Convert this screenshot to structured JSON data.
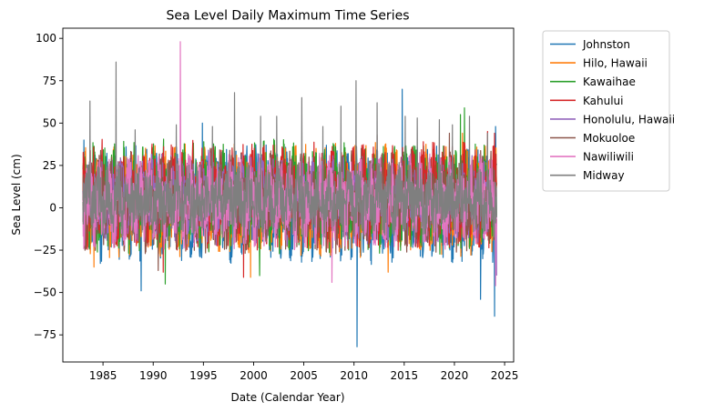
{
  "chart_data": {
    "type": "line",
    "title": "Sea Level Daily Maximum Time Series",
    "xlabel": "Date (Calendar Year)",
    "ylabel": "Sea Level (cm)",
    "xlim": [
      1981.0,
      2025.9
    ],
    "ylim": [
      -91,
      106
    ],
    "x_ticks": [
      1985,
      1990,
      1995,
      2000,
      2005,
      2010,
      2015,
      2020,
      2025
    ],
    "y_ticks": [
      -75,
      -50,
      -25,
      0,
      25,
      50,
      75,
      100
    ],
    "grid": false,
    "legend_position": "outside-top-right",
    "data_range": [
      1983.0,
      2024.2
    ],
    "series": [
      {
        "name": "Johnston",
        "color": "#1f77b4",
        "typical_range": [
          -28,
          32
        ],
        "extremes": [
          [
            1983.1,
            40
          ],
          [
            1988.8,
            -49
          ],
          [
            1994.9,
            50
          ],
          [
            2010.3,
            -82
          ],
          [
            2014.8,
            70
          ],
          [
            2022.6,
            -54
          ],
          [
            2024.0,
            -64
          ],
          [
            2024.1,
            48
          ]
        ]
      },
      {
        "name": "Hilo, Hawaii",
        "color": "#ff7f0e",
        "typical_range": [
          -24,
          33
        ],
        "extremes": [
          [
            1984.1,
            -35
          ],
          [
            1999.7,
            -41
          ],
          [
            2013.4,
            -38
          ],
          [
            2020.8,
            44
          ]
        ]
      },
      {
        "name": "Kawaihae",
        "color": "#2ca02c",
        "typical_range": [
          -22,
          35
        ],
        "extremes": [
          [
            1991.2,
            -45
          ],
          [
            2000.6,
            -40
          ],
          [
            2020.6,
            55
          ],
          [
            2021.0,
            59
          ]
        ]
      },
      {
        "name": "Kahului",
        "color": "#d62728",
        "typical_range": [
          -20,
          35
        ],
        "extremes": [
          [
            1991.0,
            -38
          ],
          [
            1999.0,
            -41
          ],
          [
            2023.3,
            45
          ],
          [
            2024.0,
            44
          ]
        ]
      },
      {
        "name": "Honolulu, Hawaii",
        "color": "#9467bd",
        "typical_range": [
          -18,
          28
        ],
        "extremes": [
          [
            1995.5,
            34
          ],
          [
            2024.2,
            -40
          ]
        ]
      },
      {
        "name": "Mokuoloe",
        "color": "#8c564b",
        "typical_range": [
          -22,
          30
        ],
        "extremes": [
          [
            1990.5,
            -37
          ],
          [
            2012.3,
            43
          ],
          [
            2019.5,
            44
          ]
        ]
      },
      {
        "name": "Nawiliwili",
        "color": "#e377c2",
        "typical_range": [
          -20,
          28
        ],
        "extremes": [
          [
            1992.7,
            98
          ],
          [
            2007.8,
            -44
          ],
          [
            2024.1,
            -46
          ]
        ]
      },
      {
        "name": "Midway",
        "color": "#7f7f7f",
        "typical_range": [
          -14,
          24
        ],
        "extremes": [
          [
            1983.7,
            63
          ],
          [
            1986.3,
            86
          ],
          [
            1988.2,
            46
          ],
          [
            1992.3,
            49
          ],
          [
            1995.9,
            48
          ],
          [
            1998.1,
            68
          ],
          [
            2000.7,
            54
          ],
          [
            2002.3,
            54
          ],
          [
            2004.8,
            65
          ],
          [
            2006.9,
            48
          ],
          [
            2008.7,
            60
          ],
          [
            2010.2,
            75
          ],
          [
            2012.3,
            62
          ],
          [
            2015.1,
            54
          ],
          [
            2016.3,
            53
          ],
          [
            2018.5,
            52
          ],
          [
            2019.8,
            49
          ],
          [
            2021.5,
            54
          ],
          [
            2023.3,
            44
          ]
        ]
      }
    ]
  }
}
